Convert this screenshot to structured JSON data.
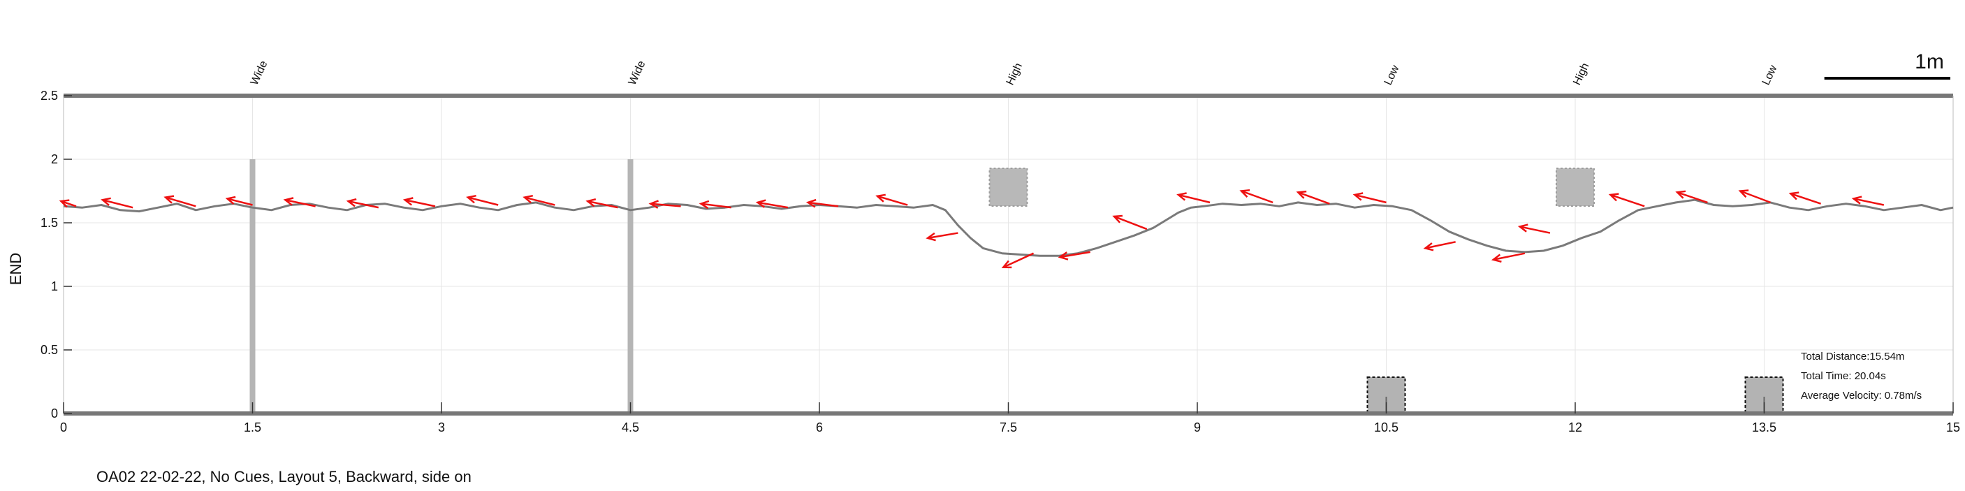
{
  "chart_data": {
    "type": "line",
    "title": "",
    "xlabel": "",
    "ylabel": "END",
    "xlim": [
      0,
      15
    ],
    "ylim": [
      0,
      2.5
    ],
    "x_ticks": [
      "0",
      "1.5",
      "3",
      "4.5",
      "6",
      "7.5",
      "9",
      "10.5",
      "12",
      "13.5",
      "15"
    ],
    "x_tick_values": [
      0,
      1.5,
      3,
      4.5,
      6,
      7.5,
      9,
      10.5,
      12,
      13.5,
      15
    ],
    "y_ticks": [
      "0",
      "0.5",
      "1",
      "1.5",
      "2",
      "2.5"
    ],
    "y_tick_values": [
      0,
      0.5,
      1,
      1.5,
      2,
      2.5
    ],
    "grid": true,
    "obstacle_labels": [
      {
        "label": "Wide",
        "x": 1.5
      },
      {
        "label": "Wide",
        "x": 4.5
      },
      {
        "label": "High",
        "x": 7.5
      },
      {
        "label": "Low",
        "x": 10.5
      },
      {
        "label": "High",
        "x": 12
      },
      {
        "label": "Low",
        "x": 13.5
      }
    ],
    "wide_posts": [
      {
        "x": 1.5,
        "y_top": 2.0
      },
      {
        "x": 4.5,
        "y_top": 2.0
      }
    ],
    "high_boxes": [
      {
        "x": 7.5,
        "y": 1.78
      },
      {
        "x": 12.0,
        "y": 1.78
      }
    ],
    "low_boxes": [
      {
        "x": 10.5,
        "y": 0.15
      },
      {
        "x": 13.5,
        "y": 0.15
      }
    ],
    "path_color": "#7a7a7a",
    "arrow_color": "#ee1111",
    "path": {
      "x": [
        0,
        0.15,
        0.3,
        0.45,
        0.6,
        0.75,
        0.9,
        1.05,
        1.2,
        1.35,
        1.5,
        1.65,
        1.8,
        1.95,
        2.1,
        2.25,
        2.4,
        2.55,
        2.7,
        2.85,
        3,
        3.15,
        3.3,
        3.45,
        3.6,
        3.75,
        3.9,
        4.05,
        4.2,
        4.35,
        4.5,
        4.65,
        4.8,
        4.95,
        5.1,
        5.25,
        5.4,
        5.55,
        5.7,
        5.85,
        6,
        6.15,
        6.3,
        6.45,
        6.6,
        6.75,
        6.9,
        7.0,
        7.1,
        7.2,
        7.3,
        7.45,
        7.6,
        7.75,
        7.9,
        8.05,
        8.2,
        8.35,
        8.5,
        8.65,
        8.75,
        8.85,
        8.95,
        9.05,
        9.2,
        9.35,
        9.5,
        9.65,
        9.8,
        9.95,
        10.1,
        10.25,
        10.4,
        10.55,
        10.7,
        10.85,
        11.0,
        11.15,
        11.3,
        11.45,
        11.6,
        11.75,
        11.9,
        12.05,
        12.2,
        12.35,
        12.5,
        12.65,
        12.8,
        12.95,
        13.1,
        13.25,
        13.4,
        13.55,
        13.7,
        13.85,
        14.0,
        14.15,
        14.3,
        14.45,
        14.6,
        14.75,
        14.9,
        15.0
      ],
      "y": [
        1.63,
        1.62,
        1.64,
        1.6,
        1.59,
        1.62,
        1.65,
        1.6,
        1.63,
        1.65,
        1.62,
        1.6,
        1.64,
        1.65,
        1.62,
        1.6,
        1.64,
        1.65,
        1.62,
        1.6,
        1.63,
        1.65,
        1.62,
        1.6,
        1.64,
        1.66,
        1.62,
        1.6,
        1.63,
        1.64,
        1.6,
        1.62,
        1.65,
        1.64,
        1.61,
        1.62,
        1.64,
        1.63,
        1.61,
        1.63,
        1.64,
        1.63,
        1.62,
        1.64,
        1.63,
        1.62,
        1.64,
        1.6,
        1.48,
        1.38,
        1.3,
        1.26,
        1.25,
        1.24,
        1.24,
        1.26,
        1.3,
        1.35,
        1.4,
        1.46,
        1.52,
        1.58,
        1.62,
        1.63,
        1.65,
        1.64,
        1.65,
        1.63,
        1.66,
        1.64,
        1.65,
        1.62,
        1.64,
        1.63,
        1.6,
        1.52,
        1.43,
        1.37,
        1.32,
        1.28,
        1.27,
        1.28,
        1.32,
        1.38,
        1.43,
        1.52,
        1.6,
        1.63,
        1.66,
        1.68,
        1.64,
        1.63,
        1.64,
        1.66,
        1.62,
        1.6,
        1.63,
        1.65,
        1.63,
        1.6,
        1.62,
        1.64,
        1.6,
        1.62
      ]
    },
    "arrows": [
      {
        "x": 0.1,
        "y": 1.63,
        "dx": -0.12,
        "dy": 0.04
      },
      {
        "x": 0.55,
        "y": 1.62,
        "dx": -0.24,
        "dy": 0.06
      },
      {
        "x": 1.05,
        "y": 1.63,
        "dx": -0.24,
        "dy": 0.07
      },
      {
        "x": 1.5,
        "y": 1.64,
        "dx": -0.2,
        "dy": 0.05
      },
      {
        "x": 2.0,
        "y": 1.63,
        "dx": -0.24,
        "dy": 0.05
      },
      {
        "x": 2.5,
        "y": 1.62,
        "dx": -0.24,
        "dy": 0.05
      },
      {
        "x": 2.95,
        "y": 1.63,
        "dx": -0.24,
        "dy": 0.05
      },
      {
        "x": 3.45,
        "y": 1.64,
        "dx": -0.24,
        "dy": 0.06
      },
      {
        "x": 3.9,
        "y": 1.64,
        "dx": -0.24,
        "dy": 0.06
      },
      {
        "x": 4.4,
        "y": 1.62,
        "dx": -0.24,
        "dy": 0.05
      },
      {
        "x": 4.9,
        "y": 1.63,
        "dx": -0.24,
        "dy": 0.02
      },
      {
        "x": 5.3,
        "y": 1.62,
        "dx": -0.24,
        "dy": 0.03
      },
      {
        "x": 5.75,
        "y": 1.62,
        "dx": -0.24,
        "dy": 0.04
      },
      {
        "x": 6.15,
        "y": 1.63,
        "dx": -0.24,
        "dy": 0.03
      },
      {
        "x": 6.7,
        "y": 1.64,
        "dx": -0.24,
        "dy": 0.07
      },
      {
        "x": 7.1,
        "y": 1.42,
        "dx": -0.24,
        "dy": -0.04
      },
      {
        "x": 7.7,
        "y": 1.26,
        "dx": -0.24,
        "dy": -0.11
      },
      {
        "x": 8.15,
        "y": 1.27,
        "dx": -0.24,
        "dy": -0.04
      },
      {
        "x": 8.6,
        "y": 1.45,
        "dx": -0.26,
        "dy": 0.1
      },
      {
        "x": 9.1,
        "y": 1.66,
        "dx": -0.25,
        "dy": 0.06
      },
      {
        "x": 9.6,
        "y": 1.66,
        "dx": -0.25,
        "dy": 0.09
      },
      {
        "x": 10.05,
        "y": 1.65,
        "dx": -0.25,
        "dy": 0.09
      },
      {
        "x": 10.5,
        "y": 1.66,
        "dx": -0.25,
        "dy": 0.06
      },
      {
        "x": 11.05,
        "y": 1.35,
        "dx": -0.24,
        "dy": -0.05
      },
      {
        "x": 11.6,
        "y": 1.26,
        "dx": -0.25,
        "dy": -0.05
      },
      {
        "x": 11.8,
        "y": 1.42,
        "dx": -0.24,
        "dy": 0.05
      },
      {
        "x": 12.55,
        "y": 1.63,
        "dx": -0.27,
        "dy": 0.09
      },
      {
        "x": 13.05,
        "y": 1.66,
        "dx": -0.24,
        "dy": 0.08
      },
      {
        "x": 13.55,
        "y": 1.66,
        "dx": -0.24,
        "dy": 0.09
      },
      {
        "x": 13.95,
        "y": 1.65,
        "dx": -0.24,
        "dy": 0.08
      },
      {
        "x": 14.45,
        "y": 1.64,
        "dx": -0.24,
        "dy": 0.05
      }
    ]
  },
  "info": {
    "total_distance": "Total Distance:15.54m",
    "total_time": "Total Time: 20.04s",
    "average_velocity": "Average Velocity: 0.78m/s"
  },
  "scale_bar": {
    "label": "1m",
    "length_m": 1
  },
  "caption": "OA02 22-02-22, No Cues, Layout 5, Backward, side on"
}
